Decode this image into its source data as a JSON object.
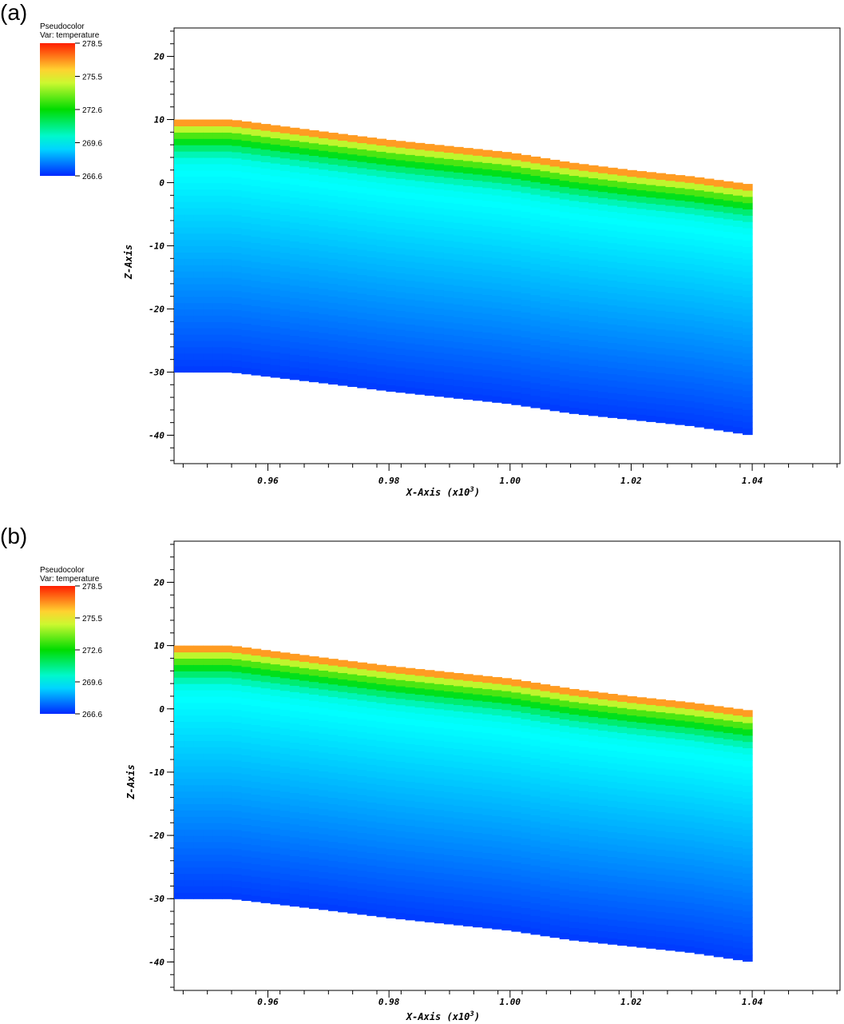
{
  "chart_data": [
    {
      "panel_label": "(a)",
      "type": "heatmap",
      "legend": {
        "title_line1": "Pseudocolor",
        "title_line2": "Var: temperature",
        "ticks": [
          "278.5",
          "275.5",
          "272.6",
          "269.6",
          "266.6"
        ],
        "min": 266.6,
        "max": 278.5,
        "colormap": "hot-cold"
      },
      "xlabel": "X-Axis (x10",
      "xlabel_sup": "3",
      "xlabel_end": ")",
      "ylabel": "Z-Axis",
      "x_ticks": [
        "0.96",
        "0.98",
        "1.00",
        "1.02",
        "1.04"
      ],
      "x_tick_values": [
        0.96,
        0.98,
        1.0,
        1.02,
        1.04
      ],
      "y_ticks": [
        "20",
        "10",
        "0",
        "-10",
        "-20",
        "-30",
        "-40"
      ],
      "y_tick_values": [
        20,
        10,
        0,
        -10,
        -20,
        -30,
        -40
      ],
      "xlim": [
        0.9445,
        1.0545
      ],
      "ylim": [
        -44.5,
        24.5
      ],
      "x_end": 1.04,
      "top_surface": [
        [
          0.9445,
          10
        ],
        [
          0.954,
          10
        ],
        [
          0.97,
          8
        ],
        [
          0.98,
          6.8
        ],
        [
          1.0,
          4.8
        ],
        [
          1.01,
          3.2
        ],
        [
          1.02,
          2.0
        ],
        [
          1.03,
          1.0
        ],
        [
          1.04,
          -0.3
        ]
      ],
      "bottom_surface": [
        [
          0.9445,
          -30
        ],
        [
          0.954,
          -30
        ],
        [
          0.97,
          -31.8
        ],
        [
          0.98,
          -33
        ],
        [
          1.0,
          -35
        ],
        [
          1.01,
          -36.5
        ],
        [
          1.02,
          -37.5
        ],
        [
          1.03,
          -38.5
        ],
        [
          1.04,
          -40
        ]
      ]
    },
    {
      "panel_label": "(b)",
      "type": "heatmap",
      "legend": {
        "title_line1": "Pseudocolor",
        "title_line2": "Var: temperature",
        "ticks": [
          "278.5",
          "275.5",
          "272.6",
          "269.6",
          "266.6"
        ],
        "min": 266.6,
        "max": 278.5,
        "colormap": "hot-cold"
      },
      "xlabel": "X-Axis (x10",
      "xlabel_sup": "3",
      "xlabel_end": ")",
      "ylabel": "Z-Axis",
      "x_ticks": [
        "0.96",
        "0.98",
        "1.00",
        "1.02",
        "1.04"
      ],
      "x_tick_values": [
        0.96,
        0.98,
        1.0,
        1.02,
        1.04
      ],
      "y_ticks": [
        "20",
        "10",
        "0",
        "-10",
        "-20",
        "-30",
        "-40"
      ],
      "y_tick_values": [
        20,
        10,
        0,
        -10,
        -20,
        -30,
        -40
      ],
      "xlim": [
        0.9445,
        1.0545
      ],
      "ylim": [
        -44.5,
        26.5
      ],
      "x_end": 1.04,
      "top_surface": [
        [
          0.9445,
          10
        ],
        [
          0.954,
          10
        ],
        [
          0.97,
          8
        ],
        [
          0.98,
          6.8
        ],
        [
          1.0,
          4.8
        ],
        [
          1.01,
          3.2
        ],
        [
          1.02,
          2.0
        ],
        [
          1.03,
          1.0
        ],
        [
          1.04,
          -0.3
        ]
      ],
      "bottom_surface": [
        [
          0.9445,
          -30
        ],
        [
          0.954,
          -30
        ],
        [
          0.97,
          -31.8
        ],
        [
          0.98,
          -33
        ],
        [
          1.0,
          -35
        ],
        [
          1.01,
          -36.5
        ],
        [
          1.02,
          -37.5
        ],
        [
          1.03,
          -38.5
        ],
        [
          1.04,
          -40
        ]
      ]
    }
  ]
}
